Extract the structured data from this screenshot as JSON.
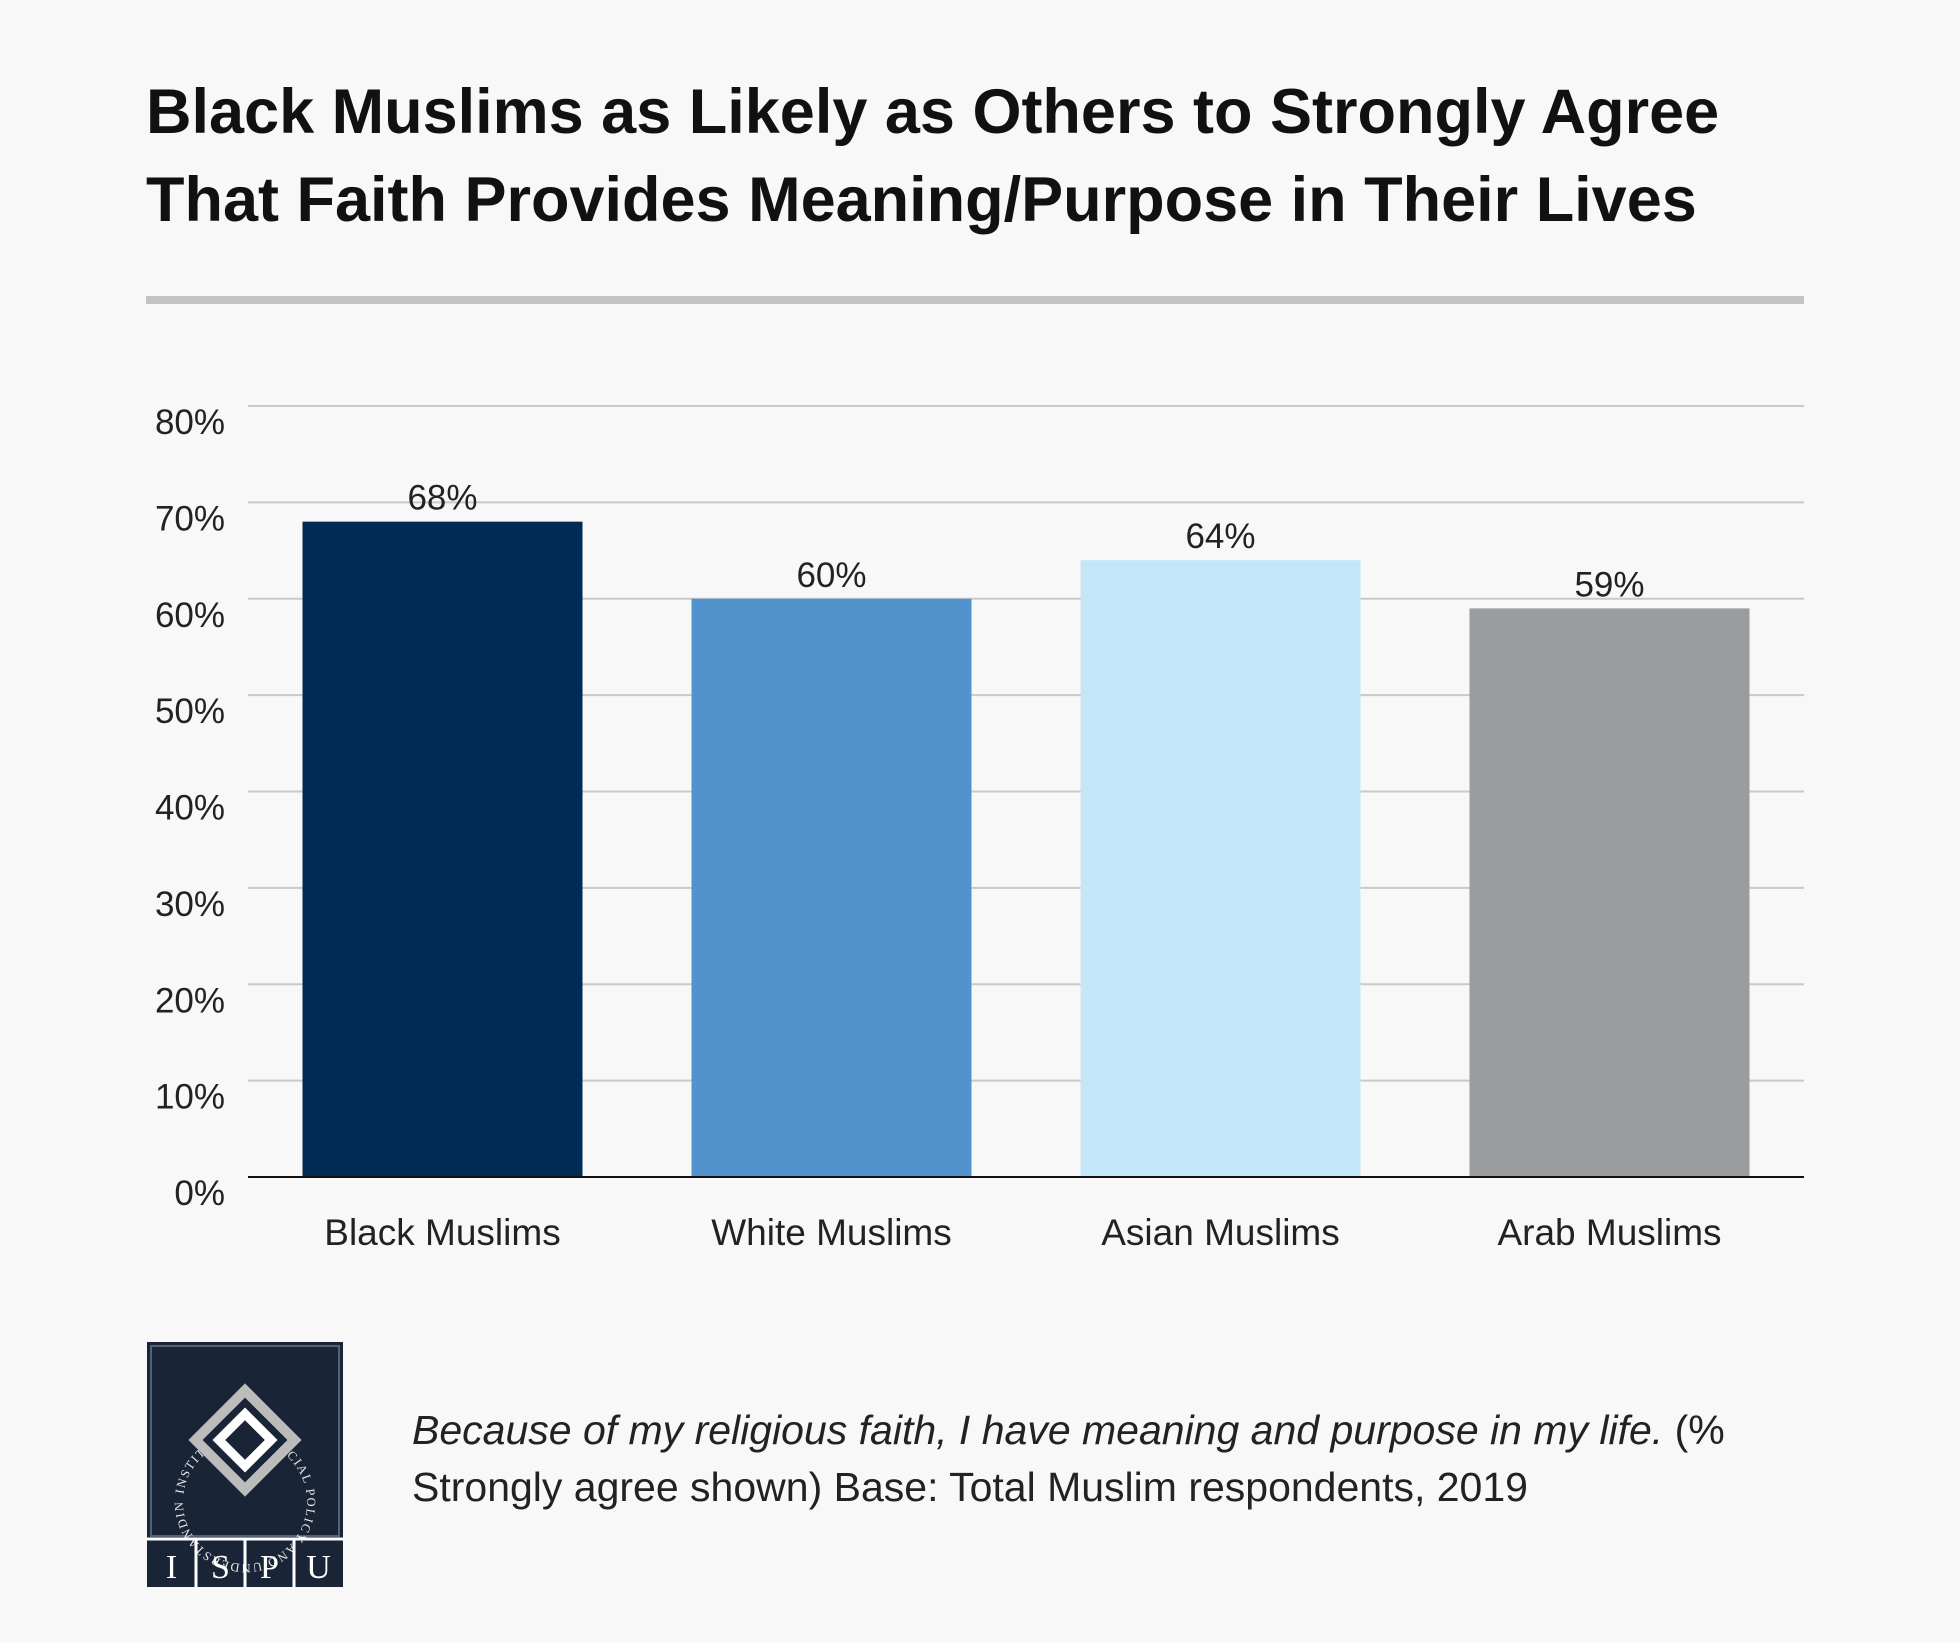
{
  "title_line1": "Black Muslims as Likely as Others to Strongly Agree",
  "title_line2": "That Faith Provides Meaning/Purpose in Their Lives",
  "chart_data": {
    "type": "bar",
    "categories": [
      "Black Muslims",
      "White Muslims",
      "Asian Muslims",
      "Arab Muslims"
    ],
    "values": [
      68,
      60,
      64,
      59
    ],
    "data_labels": [
      "68%",
      "60%",
      "64%",
      "59%"
    ],
    "colors": [
      "#002b55",
      "#5293ce",
      "#c3e7f9",
      "#9b9c9e"
    ],
    "y_ticks": [
      "0%",
      "10%",
      "20%",
      "30%",
      "40%",
      "50%",
      "60%",
      "70%",
      "80%"
    ],
    "ylim": [
      0,
      80
    ],
    "grid": true,
    "legend": "none"
  },
  "note": {
    "question": "Because of my religious faith, I have meaning and purpose in my life.",
    "rest": " (% Strongly agree shown) Base: Total Muslim respondents, 2019"
  },
  "logo": {
    "ring_text": "INSTITUTE FOR SOCIAL POLICY AND UNDERSTANDING",
    "letters": [
      "I",
      "S",
      "P",
      "U"
    ],
    "color": "#1a2437"
  }
}
